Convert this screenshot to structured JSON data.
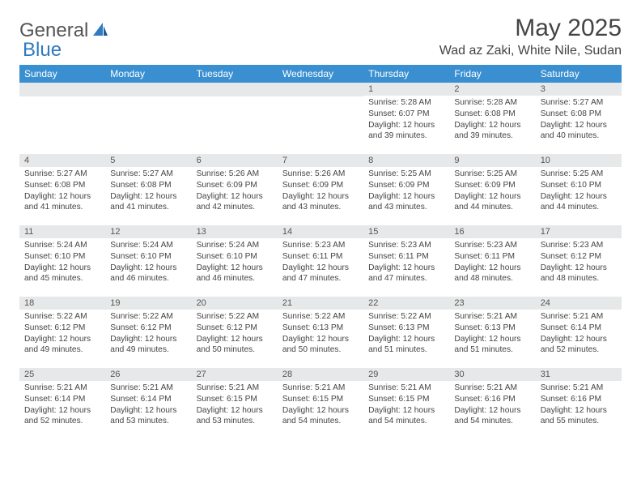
{
  "logo": {
    "part1": "General",
    "part2": "Blue"
  },
  "title": "May 2025",
  "location": "Wad az Zaki, White Nile, Sudan",
  "colors": {
    "header_bg": "#3a8fd0",
    "header_text": "#ffffff",
    "daynum_bg": "#e7e8e9",
    "text": "#444444",
    "logo_gray": "#555555",
    "logo_blue": "#2f7ac0"
  },
  "weekdays": [
    "Sunday",
    "Monday",
    "Tuesday",
    "Wednesday",
    "Thursday",
    "Friday",
    "Saturday"
  ],
  "weeks": [
    [
      {
        "empty": true
      },
      {
        "empty": true
      },
      {
        "empty": true
      },
      {
        "empty": true
      },
      {
        "num": "1",
        "sunrise": "Sunrise: 5:28 AM",
        "sunset": "Sunset: 6:07 PM",
        "daylight": "Daylight: 12 hours and 39 minutes."
      },
      {
        "num": "2",
        "sunrise": "Sunrise: 5:28 AM",
        "sunset": "Sunset: 6:08 PM",
        "daylight": "Daylight: 12 hours and 39 minutes."
      },
      {
        "num": "3",
        "sunrise": "Sunrise: 5:27 AM",
        "sunset": "Sunset: 6:08 PM",
        "daylight": "Daylight: 12 hours and 40 minutes."
      }
    ],
    [
      {
        "num": "4",
        "sunrise": "Sunrise: 5:27 AM",
        "sunset": "Sunset: 6:08 PM",
        "daylight": "Daylight: 12 hours and 41 minutes."
      },
      {
        "num": "5",
        "sunrise": "Sunrise: 5:27 AM",
        "sunset": "Sunset: 6:08 PM",
        "daylight": "Daylight: 12 hours and 41 minutes."
      },
      {
        "num": "6",
        "sunrise": "Sunrise: 5:26 AM",
        "sunset": "Sunset: 6:09 PM",
        "daylight": "Daylight: 12 hours and 42 minutes."
      },
      {
        "num": "7",
        "sunrise": "Sunrise: 5:26 AM",
        "sunset": "Sunset: 6:09 PM",
        "daylight": "Daylight: 12 hours and 43 minutes."
      },
      {
        "num": "8",
        "sunrise": "Sunrise: 5:25 AM",
        "sunset": "Sunset: 6:09 PM",
        "daylight": "Daylight: 12 hours and 43 minutes."
      },
      {
        "num": "9",
        "sunrise": "Sunrise: 5:25 AM",
        "sunset": "Sunset: 6:09 PM",
        "daylight": "Daylight: 12 hours and 44 minutes."
      },
      {
        "num": "10",
        "sunrise": "Sunrise: 5:25 AM",
        "sunset": "Sunset: 6:10 PM",
        "daylight": "Daylight: 12 hours and 44 minutes."
      }
    ],
    [
      {
        "num": "11",
        "sunrise": "Sunrise: 5:24 AM",
        "sunset": "Sunset: 6:10 PM",
        "daylight": "Daylight: 12 hours and 45 minutes."
      },
      {
        "num": "12",
        "sunrise": "Sunrise: 5:24 AM",
        "sunset": "Sunset: 6:10 PM",
        "daylight": "Daylight: 12 hours and 46 minutes."
      },
      {
        "num": "13",
        "sunrise": "Sunrise: 5:24 AM",
        "sunset": "Sunset: 6:10 PM",
        "daylight": "Daylight: 12 hours and 46 minutes."
      },
      {
        "num": "14",
        "sunrise": "Sunrise: 5:23 AM",
        "sunset": "Sunset: 6:11 PM",
        "daylight": "Daylight: 12 hours and 47 minutes."
      },
      {
        "num": "15",
        "sunrise": "Sunrise: 5:23 AM",
        "sunset": "Sunset: 6:11 PM",
        "daylight": "Daylight: 12 hours and 47 minutes."
      },
      {
        "num": "16",
        "sunrise": "Sunrise: 5:23 AM",
        "sunset": "Sunset: 6:11 PM",
        "daylight": "Daylight: 12 hours and 48 minutes."
      },
      {
        "num": "17",
        "sunrise": "Sunrise: 5:23 AM",
        "sunset": "Sunset: 6:12 PM",
        "daylight": "Daylight: 12 hours and 48 minutes."
      }
    ],
    [
      {
        "num": "18",
        "sunrise": "Sunrise: 5:22 AM",
        "sunset": "Sunset: 6:12 PM",
        "daylight": "Daylight: 12 hours and 49 minutes."
      },
      {
        "num": "19",
        "sunrise": "Sunrise: 5:22 AM",
        "sunset": "Sunset: 6:12 PM",
        "daylight": "Daylight: 12 hours and 49 minutes."
      },
      {
        "num": "20",
        "sunrise": "Sunrise: 5:22 AM",
        "sunset": "Sunset: 6:12 PM",
        "daylight": "Daylight: 12 hours and 50 minutes."
      },
      {
        "num": "21",
        "sunrise": "Sunrise: 5:22 AM",
        "sunset": "Sunset: 6:13 PM",
        "daylight": "Daylight: 12 hours and 50 minutes."
      },
      {
        "num": "22",
        "sunrise": "Sunrise: 5:22 AM",
        "sunset": "Sunset: 6:13 PM",
        "daylight": "Daylight: 12 hours and 51 minutes."
      },
      {
        "num": "23",
        "sunrise": "Sunrise: 5:21 AM",
        "sunset": "Sunset: 6:13 PM",
        "daylight": "Daylight: 12 hours and 51 minutes."
      },
      {
        "num": "24",
        "sunrise": "Sunrise: 5:21 AM",
        "sunset": "Sunset: 6:14 PM",
        "daylight": "Daylight: 12 hours and 52 minutes."
      }
    ],
    [
      {
        "num": "25",
        "sunrise": "Sunrise: 5:21 AM",
        "sunset": "Sunset: 6:14 PM",
        "daylight": "Daylight: 12 hours and 52 minutes."
      },
      {
        "num": "26",
        "sunrise": "Sunrise: 5:21 AM",
        "sunset": "Sunset: 6:14 PM",
        "daylight": "Daylight: 12 hours and 53 minutes."
      },
      {
        "num": "27",
        "sunrise": "Sunrise: 5:21 AM",
        "sunset": "Sunset: 6:15 PM",
        "daylight": "Daylight: 12 hours and 53 minutes."
      },
      {
        "num": "28",
        "sunrise": "Sunrise: 5:21 AM",
        "sunset": "Sunset: 6:15 PM",
        "daylight": "Daylight: 12 hours and 54 minutes."
      },
      {
        "num": "29",
        "sunrise": "Sunrise: 5:21 AM",
        "sunset": "Sunset: 6:15 PM",
        "daylight": "Daylight: 12 hours and 54 minutes."
      },
      {
        "num": "30",
        "sunrise": "Sunrise: 5:21 AM",
        "sunset": "Sunset: 6:16 PM",
        "daylight": "Daylight: 12 hours and 54 minutes."
      },
      {
        "num": "31",
        "sunrise": "Sunrise: 5:21 AM",
        "sunset": "Sunset: 6:16 PM",
        "daylight": "Daylight: 12 hours and 55 minutes."
      }
    ]
  ]
}
